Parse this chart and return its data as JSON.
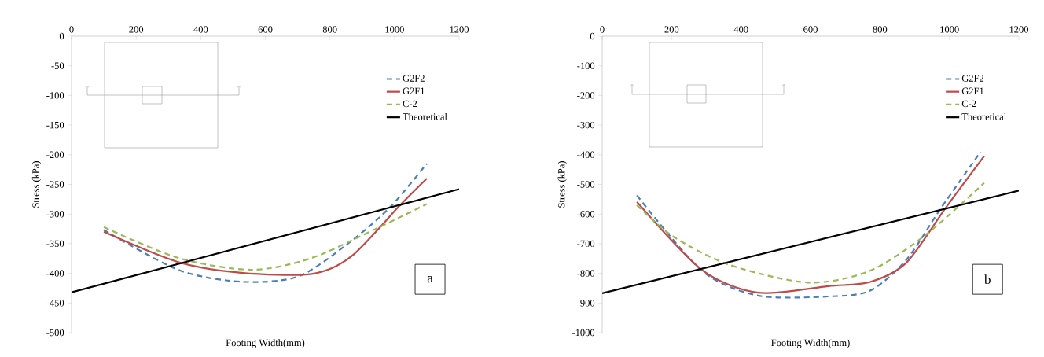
{
  "chart_data": [
    {
      "type": "line",
      "xlabel": "Footing Width(mm)",
      "ylabel": "Stress (kPa)",
      "xlim": [
        0,
        1200
      ],
      "xticks": [
        0,
        200,
        400,
        600,
        800,
        1000,
        1200
      ],
      "ylim": [
        -500,
        0
      ],
      "yticks": [
        -500,
        -450,
        -400,
        -350,
        -300,
        -250,
        -200,
        -150,
        -100,
        -50,
        0
      ],
      "grid": false,
      "legend": "top right",
      "annotations": [
        "a"
      ],
      "series": [
        {
          "name": "G2F2",
          "color": "#4a7ebb",
          "line_style": "dashed",
          "x": [
            100,
            330,
            525,
            703,
            865,
            987,
            1100
          ],
          "values": [
            -327,
            -394,
            -414,
            -405,
            -346,
            -288,
            -215
          ]
        },
        {
          "name": "G2F1",
          "color": "#be4b48",
          "line_style": "solid",
          "x": [
            100,
            330,
            525,
            744,
            865,
            1019,
            1100
          ],
          "values": [
            -330,
            -381,
            -399,
            -401,
            -372,
            -284,
            -240
          ]
        },
        {
          "name": "C-2",
          "color": "#98b954",
          "line_style": "dashed",
          "x": [
            100,
            330,
            557,
            744,
            946,
            1100
          ],
          "values": [
            -322,
            -374,
            -394,
            -374,
            -324,
            -283
          ]
        },
        {
          "name": "Theoretical",
          "color": "#000000",
          "line_style": "solid",
          "x": [
            0,
            1200
          ],
          "values": [
            -432,
            -258
          ]
        }
      ]
    },
    {
      "type": "line",
      "xlabel": "Footing Width(mm)",
      "ylabel": "Stress (kPa)",
      "xlim": [
        0,
        1200
      ],
      "xticks": [
        0,
        200,
        400,
        600,
        800,
        1000,
        1200
      ],
      "ylim": [
        -1000,
        0
      ],
      "yticks": [
        -1000,
        -900,
        -800,
        -700,
        -600,
        -500,
        -400,
        -300,
        -200,
        -100,
        0
      ],
      "grid": false,
      "legend": "top right",
      "annotations": [
        "b"
      ],
      "series": [
        {
          "name": "G2F2",
          "color": "#4a7ebb",
          "line_style": "dashed",
          "x": [
            100,
            287,
            449,
            651,
            772,
            877,
            974,
            1090
          ],
          "values": [
            -537,
            -791,
            -875,
            -878,
            -858,
            -753,
            -583,
            -390
          ]
        },
        {
          "name": "G2F1",
          "color": "#be4b48",
          "line_style": "solid",
          "x": [
            100,
            287,
            449,
            651,
            772,
            877,
            990,
            1100
          ],
          "values": [
            -559,
            -788,
            -865,
            -843,
            -829,
            -763,
            -578,
            -405
          ]
        },
        {
          "name": "C-2",
          "color": "#98b954",
          "line_style": "dashed",
          "x": [
            100,
            206,
            368,
            594,
            772,
            934,
            1100
          ],
          "values": [
            -570,
            -677,
            -772,
            -831,
            -791,
            -668,
            -495
          ]
        },
        {
          "name": "Theoretical",
          "color": "#000000",
          "line_style": "solid",
          "x": [
            0,
            1200
          ],
          "values": [
            -867,
            -521
          ]
        }
      ]
    }
  ]
}
